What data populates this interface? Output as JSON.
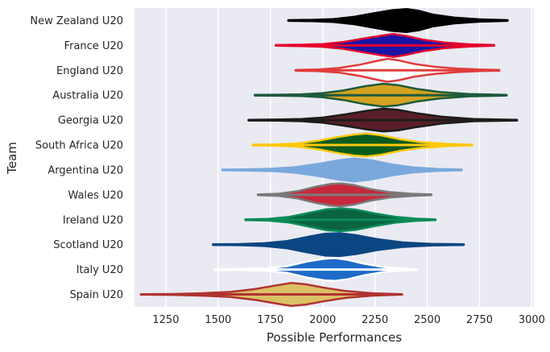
{
  "chart_data": {
    "type": "violin",
    "orientation": "horizontal",
    "xlabel": "Possible Performances",
    "ylabel": "Team",
    "xlim": [
      1100,
      3010
    ],
    "xticks": [
      1250,
      1500,
      1750,
      2000,
      2250,
      2500,
      2750,
      3000
    ],
    "grid": true,
    "background": "#eaeaf2",
    "categories": [
      {
        "team": "New Zealand U20",
        "fill": "#000000",
        "edge": "#000000",
        "min": 1835,
        "max": 2885,
        "profile": [
          [
            1835,
            0.03
          ],
          [
            1950,
            0.06
          ],
          [
            2050,
            0.12
          ],
          [
            2150,
            0.32
          ],
          [
            2250,
            0.65
          ],
          [
            2330,
            0.9
          ],
          [
            2400,
            1.0
          ],
          [
            2460,
            0.85
          ],
          [
            2530,
            0.5
          ],
          [
            2630,
            0.25
          ],
          [
            2750,
            0.1
          ],
          [
            2885,
            0.03
          ]
        ]
      },
      {
        "team": "France U20",
        "fill": "#1a14a5",
        "edge": "#e4002b",
        "min": 1775,
        "max": 2820,
        "profile": [
          [
            1775,
            0.03
          ],
          [
            1900,
            0.06
          ],
          [
            2000,
            0.12
          ],
          [
            2100,
            0.3
          ],
          [
            2200,
            0.62
          ],
          [
            2280,
            0.85
          ],
          [
            2340,
            1.0
          ],
          [
            2400,
            0.82
          ],
          [
            2480,
            0.5
          ],
          [
            2580,
            0.25
          ],
          [
            2700,
            0.1
          ],
          [
            2820,
            0.03
          ]
        ]
      },
      {
        "team": "England U20",
        "fill": "#ffffff",
        "edge": "#e03c3c",
        "min": 1870,
        "max": 2845,
        "profile": [
          [
            1870,
            0.03
          ],
          [
            1980,
            0.08
          ],
          [
            2080,
            0.2
          ],
          [
            2180,
            0.5
          ],
          [
            2260,
            0.82
          ],
          [
            2310,
            1.0
          ],
          [
            2360,
            0.88
          ],
          [
            2440,
            0.55
          ],
          [
            2540,
            0.3
          ],
          [
            2650,
            0.15
          ],
          [
            2750,
            0.07
          ],
          [
            2845,
            0.03
          ]
        ]
      },
      {
        "team": "Australia U20",
        "fill": "#d4a220",
        "edge": "#1e5a3c",
        "min": 1675,
        "max": 2880,
        "profile": [
          [
            1675,
            0.03
          ],
          [
            1800,
            0.05
          ],
          [
            1900,
            0.08
          ],
          [
            2000,
            0.18
          ],
          [
            2100,
            0.42
          ],
          [
            2200,
            0.78
          ],
          [
            2290,
            1.0
          ],
          [
            2360,
            0.88
          ],
          [
            2450,
            0.55
          ],
          [
            2560,
            0.28
          ],
          [
            2700,
            0.1
          ],
          [
            2880,
            0.03
          ]
        ]
      },
      {
        "team": "Georgia U20",
        "fill": "#5a1e28",
        "edge": "#1c1c1c",
        "min": 1645,
        "max": 2930,
        "profile": [
          [
            1645,
            0.03
          ],
          [
            1780,
            0.05
          ],
          [
            1900,
            0.1
          ],
          [
            2000,
            0.22
          ],
          [
            2100,
            0.48
          ],
          [
            2200,
            0.78
          ],
          [
            2290,
            1.0
          ],
          [
            2360,
            0.9
          ],
          [
            2450,
            0.6
          ],
          [
            2570,
            0.3
          ],
          [
            2720,
            0.1
          ],
          [
            2930,
            0.03
          ]
        ]
      },
      {
        "team": "South Africa U20",
        "fill": "#0a5c1e",
        "edge": "#ffc80a",
        "min": 1665,
        "max": 2715,
        "profile": [
          [
            1665,
            0.03
          ],
          [
            1780,
            0.06
          ],
          [
            1880,
            0.14
          ],
          [
            1980,
            0.38
          ],
          [
            2080,
            0.72
          ],
          [
            2150,
            0.92
          ],
          [
            2210,
            1.0
          ],
          [
            2280,
            0.85
          ],
          [
            2370,
            0.5
          ],
          [
            2470,
            0.25
          ],
          [
            2600,
            0.09
          ],
          [
            2715,
            0.03
          ]
        ]
      },
      {
        "team": "Argentina U20",
        "fill": "#7aa8dc",
        "edge": "#7aa8dc",
        "min": 1520,
        "max": 2665,
        "profile": [
          [
            1520,
            0.03
          ],
          [
            1650,
            0.05
          ],
          [
            1750,
            0.1
          ],
          [
            1860,
            0.22
          ],
          [
            1970,
            0.5
          ],
          [
            2070,
            0.82
          ],
          [
            2150,
            1.0
          ],
          [
            2230,
            0.85
          ],
          [
            2330,
            0.48
          ],
          [
            2430,
            0.22
          ],
          [
            2550,
            0.08
          ],
          [
            2665,
            0.03
          ]
        ]
      },
      {
        "team": "Wales U20",
        "fill": "#c8283c",
        "edge": "#7a7a7a",
        "min": 1690,
        "max": 2520,
        "profile": [
          [
            1690,
            0.03
          ],
          [
            1790,
            0.1
          ],
          [
            1880,
            0.32
          ],
          [
            1970,
            0.72
          ],
          [
            2040,
            0.95
          ],
          [
            2090,
            1.0
          ],
          [
            2150,
            0.85
          ],
          [
            2230,
            0.5
          ],
          [
            2320,
            0.24
          ],
          [
            2420,
            0.1
          ],
          [
            2520,
            0.03
          ]
        ]
      },
      {
        "team": "Ireland U20",
        "fill": "#0a6440",
        "edge": "#0a8c58",
        "min": 1630,
        "max": 2540,
        "profile": [
          [
            1630,
            0.03
          ],
          [
            1740,
            0.08
          ],
          [
            1840,
            0.25
          ],
          [
            1940,
            0.62
          ],
          [
            2020,
            0.92
          ],
          [
            2090,
            1.0
          ],
          [
            2160,
            0.88
          ],
          [
            2250,
            0.55
          ],
          [
            2350,
            0.25
          ],
          [
            2450,
            0.09
          ],
          [
            2540,
            0.03
          ]
        ]
      },
      {
        "team": "Scotland U20",
        "fill": "#0c4682",
        "edge": "#0c4682",
        "min": 1475,
        "max": 2675,
        "profile": [
          [
            1475,
            0.03
          ],
          [
            1600,
            0.05
          ],
          [
            1720,
            0.12
          ],
          [
            1830,
            0.32
          ],
          [
            1930,
            0.68
          ],
          [
            2010,
            0.95
          ],
          [
            2080,
            1.0
          ],
          [
            2160,
            0.82
          ],
          [
            2260,
            0.48
          ],
          [
            2380,
            0.2
          ],
          [
            2520,
            0.07
          ],
          [
            2675,
            0.03
          ]
        ]
      },
      {
        "team": "Italy U20",
        "fill": "#1e6ac8",
        "edge": "#ffffff",
        "min": 1480,
        "max": 2450,
        "profile": [
          [
            1480,
            0.03
          ],
          [
            1620,
            0.05
          ],
          [
            1730,
            0.1
          ],
          [
            1830,
            0.3
          ],
          [
            1930,
            0.72
          ],
          [
            2010,
            0.95
          ],
          [
            2060,
            1.0
          ],
          [
            2120,
            0.85
          ],
          [
            2200,
            0.5
          ],
          [
            2290,
            0.22
          ],
          [
            2380,
            0.08
          ],
          [
            2450,
            0.03
          ]
        ]
      },
      {
        "team": "Spain U20",
        "fill": "#dcc066",
        "edge": "#b03232",
        "min": 1130,
        "max": 2380,
        "profile": [
          [
            1130,
            0.02
          ],
          [
            1280,
            0.04
          ],
          [
            1420,
            0.1
          ],
          [
            1560,
            0.22
          ],
          [
            1680,
            0.48
          ],
          [
            1780,
            0.8
          ],
          [
            1850,
            1.0
          ],
          [
            1920,
            0.88
          ],
          [
            2010,
            0.58
          ],
          [
            2110,
            0.3
          ],
          [
            2240,
            0.1
          ],
          [
            2380,
            0.02
          ]
        ]
      }
    ]
  }
}
